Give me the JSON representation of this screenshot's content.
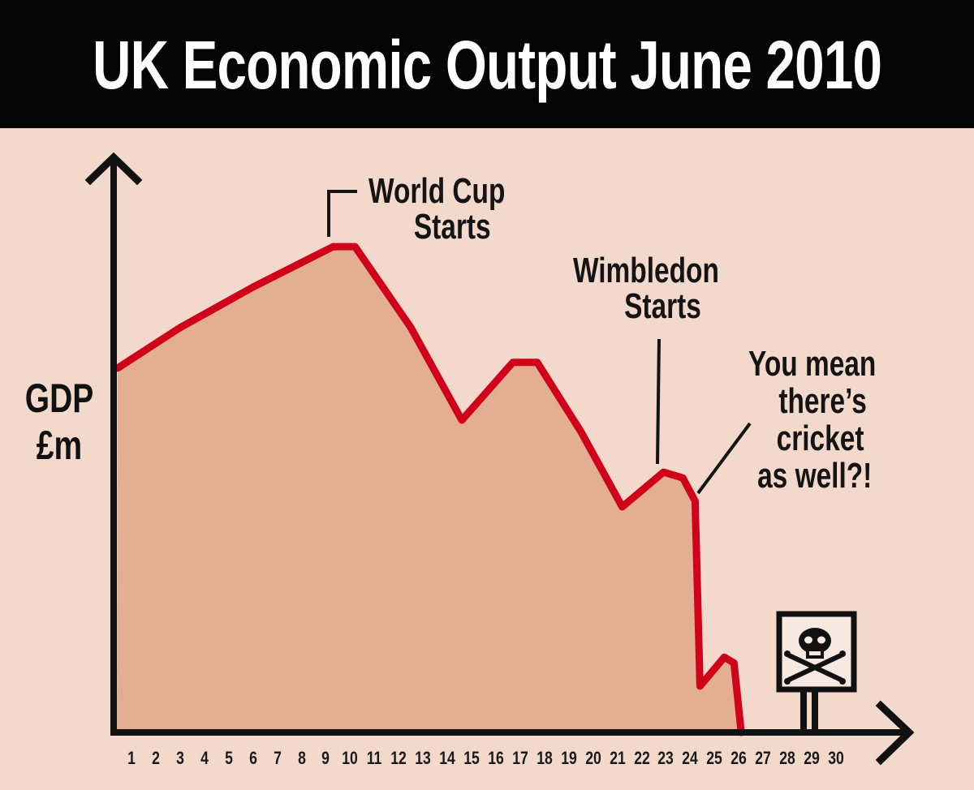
{
  "header": {
    "title": "UK Economic Output June 2010"
  },
  "axes": {
    "ylabel_line1": "GDP",
    "ylabel_line2": "£m",
    "xticks": [
      "1",
      "2",
      "3",
      "4",
      "5",
      "6",
      "7",
      "8",
      "9",
      "10",
      "11",
      "12",
      "13",
      "14",
      "15",
      "16",
      "17",
      "18",
      "19",
      "20",
      "21",
      "22",
      "23",
      "24",
      "25",
      "26",
      "27",
      "28",
      "29",
      "30"
    ]
  },
  "annotations": {
    "world_cup_line1": "World Cup",
    "world_cup_line2": "Starts",
    "wimbledon_line1": "Wimbledon",
    "wimbledon_line2": "Starts",
    "cricket_line1": "You mean",
    "cricket_line2": "there’s",
    "cricket_line3": "cricket",
    "cricket_line4": "as well?!"
  },
  "sign": {
    "icon": "skull-and-crossbones-icon"
  },
  "colors": {
    "background": "#f2d9cb",
    "title_bar": "#050505",
    "line": "#d0021b",
    "fill": "#e4ae94",
    "axis": "#111111"
  },
  "chart_data": {
    "type": "area",
    "title": "UK Economic Output June 2010",
    "xlabel": "",
    "ylabel": "GDP £m",
    "x_categories": [
      "1",
      "2",
      "3",
      "4",
      "5",
      "6",
      "7",
      "8",
      "9",
      "10",
      "11",
      "12",
      "13",
      "14",
      "15",
      "16",
      "17",
      "18",
      "19",
      "20",
      "21",
      "22",
      "23",
      "24",
      "25",
      "26",
      "27",
      "28",
      "29",
      "30"
    ],
    "y_scale_note": "no y tick values shown; values are relative 0-100 estimates",
    "ylim": [
      0,
      100
    ],
    "grid": false,
    "legend": "none",
    "series": [
      {
        "name": "GDP",
        "points": [
          {
            "day": 0.2,
            "value": 63
          },
          {
            "day": 3,
            "value": 70
          },
          {
            "day": 6,
            "value": 77
          },
          {
            "day": 9.3,
            "value": 84
          },
          {
            "day": 10.2,
            "value": 84
          },
          {
            "day": 12.5,
            "value": 70
          },
          {
            "day": 14.6,
            "value": 54
          },
          {
            "day": 16.7,
            "value": 64
          },
          {
            "day": 17.7,
            "value": 64
          },
          {
            "day": 19.5,
            "value": 52
          },
          {
            "day": 21.2,
            "value": 39
          },
          {
            "day": 22.9,
            "value": 45
          },
          {
            "day": 23.7,
            "value": 44
          },
          {
            "day": 24.2,
            "value": 40
          },
          {
            "day": 24.4,
            "value": 8
          },
          {
            "day": 25.4,
            "value": 13
          },
          {
            "day": 25.8,
            "value": 12
          },
          {
            "day": 26.1,
            "value": 0
          }
        ]
      }
    ],
    "annotations": [
      {
        "text": "World Cup Starts",
        "day": 10
      },
      {
        "text": "Wimbledon Starts",
        "day": 23
      },
      {
        "text": "You mean there’s cricket as well?!",
        "day": 24.5
      },
      {
        "text": "skull-and-crossbones sign",
        "day": 29
      }
    ]
  }
}
